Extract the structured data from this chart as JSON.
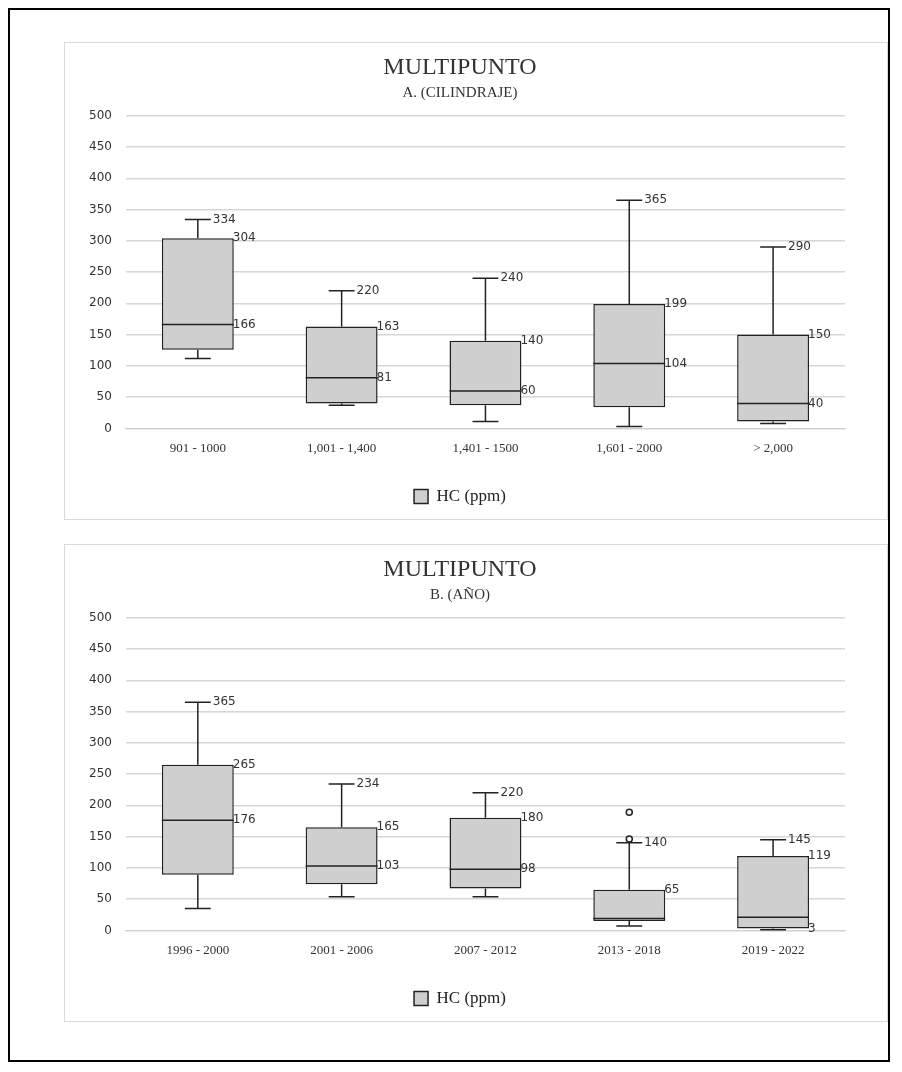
{
  "chart_data": [
    {
      "type": "box",
      "title": "MULTIPUNTO",
      "subtitle": "A. (CILINDRAJE)",
      "categories": [
        "901 - 1000",
        "1,001 - 1,400",
        "1,401 - 1500",
        "1,601 - 2000",
        "> 2,000"
      ],
      "series": [
        {
          "name": "HC (ppm)",
          "color": "#cfcfcf",
          "boxes": [
            {
              "low": 112,
              "q1": 126,
              "median": 166,
              "q3": 304,
              "high": 334
            },
            {
              "low": 37,
              "q1": 40,
              "median": 81,
              "q3": 163,
              "high": 220
            },
            {
              "low": 11,
              "q1": 37,
              "median": 60,
              "q3": 140,
              "high": 240
            },
            {
              "low": 3,
              "q1": 34,
              "median": 104,
              "q3": 199,
              "high": 365
            },
            {
              "low": 8,
              "q1": 11,
              "median": 40,
              "q3": 150,
              "high": 290
            }
          ]
        }
      ],
      "ylim": [
        0,
        500
      ],
      "yticks": [
        0,
        50,
        100,
        150,
        200,
        250,
        300,
        350,
        400,
        450,
        500
      ],
      "grid": "y",
      "legend": "bottom",
      "annotations": [
        {
          "text": "334",
          "x": "901 - 1000",
          "y": 334
        },
        {
          "text": "304",
          "x": "901 - 1000",
          "y": 304
        },
        {
          "text": "166",
          "x": "901 - 1000",
          "y": 166
        },
        {
          "text": "220",
          "x": "1,001 - 1,400",
          "y": 220
        },
        {
          "text": "163",
          "x": "1,001 - 1,400",
          "y": 163
        },
        {
          "text": "81",
          "x": "1,001 - 1,400",
          "y": 81
        },
        {
          "text": "240",
          "x": "1,401 - 1500",
          "y": 240
        },
        {
          "text": "140",
          "x": "1,401 - 1500",
          "y": 140
        },
        {
          "text": "60",
          "x": "1,401 - 1500",
          "y": 60
        },
        {
          "text": "365",
          "x": "1,601 - 2000",
          "y": 365
        },
        {
          "text": "199",
          "x": "1,601 - 2000",
          "y": 199
        },
        {
          "text": "104",
          "x": "1,601 - 2000",
          "y": 104
        },
        {
          "text": "290",
          "x": "> 2,000",
          "y": 290
        },
        {
          "text": "150",
          "x": "> 2,000",
          "y": 150
        },
        {
          "text": "40",
          "x": "> 2,000",
          "y": 40
        }
      ]
    },
    {
      "type": "box",
      "title": "MULTIPUNTO",
      "subtitle": "B. (AÑO)",
      "categories": [
        "1996 - 2000",
        "2001 - 2006",
        "2007 - 2012",
        "2013 - 2018",
        "2019 - 2022"
      ],
      "series": [
        {
          "name": "HC (ppm)",
          "color": "#cfcfcf",
          "boxes": [
            {
              "low": 35,
              "q1": 89,
              "median": 176,
              "q3": 265,
              "high": 365
            },
            {
              "low": 54,
              "q1": 74,
              "median": 103,
              "q3": 165,
              "high": 234
            },
            {
              "low": 54,
              "q1": 67,
              "median": 98,
              "q3": 180,
              "high": 220
            },
            {
              "low": 7,
              "q1": 15,
              "median": 19,
              "q3": 65,
              "high": 140,
              "outliers": [
                146,
                189
              ]
            },
            {
              "low": 1,
              "q1": 3,
              "median": 21,
              "q3": 119,
              "high": 145
            }
          ]
        }
      ],
      "ylim": [
        0,
        500
      ],
      "yticks": [
        0,
        50,
        100,
        150,
        200,
        250,
        300,
        350,
        400,
        450,
        500
      ],
      "grid": "y",
      "legend": "bottom",
      "annotations": [
        {
          "text": "365",
          "x": "1996 - 2000",
          "y": 365
        },
        {
          "text": "265",
          "x": "1996 - 2000",
          "y": 265
        },
        {
          "text": "176",
          "x": "1996 - 2000",
          "y": 176
        },
        {
          "text": "234",
          "x": "2001 - 2006",
          "y": 234
        },
        {
          "text": "165",
          "x": "2001 - 2006",
          "y": 165
        },
        {
          "text": "103",
          "x": "2001 - 2006",
          "y": 103
        },
        {
          "text": "220",
          "x": "2007 - 2012",
          "y": 220
        },
        {
          "text": "180",
          "x": "2007 - 2012",
          "y": 180
        },
        {
          "text": "98",
          "x": "2007 - 2012",
          "y": 98
        },
        {
          "text": "140",
          "x": "2013 - 2018",
          "y": 140
        },
        {
          "text": "65",
          "x": "2013 - 2018",
          "y": 65
        },
        {
          "text": "145",
          "x": "2019 - 2022",
          "y": 145
        },
        {
          "text": "119",
          "x": "2019 - 2022",
          "y": 119
        },
        {
          "text": "3",
          "x": "2019 - 2022",
          "y": 3
        }
      ]
    }
  ]
}
